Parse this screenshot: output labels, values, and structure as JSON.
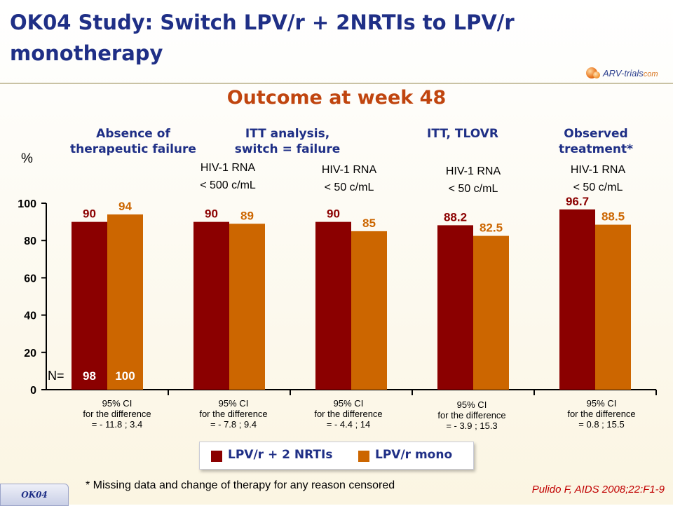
{
  "slide": {
    "title": "OK04 Study: Switch LPV/r + 2NRTIs to LPV/r monotherapy",
    "subtitle": "Outcome at week 48",
    "logo_text": "ARV-trials",
    "logo_domain": "com",
    "footnote": "* Missing data and change of therapy for any reason censored",
    "citation": "Pulido F, AIDS 2008;22:F1-9",
    "tag": "OK04"
  },
  "headers": [
    "Absence of\ntherapeutic failure",
    "ITT analysis,\nswitch = failure",
    "ITT, TLOVR",
    "Observed\ntreatment*"
  ],
  "rna_labels": [
    "HIV-1 RNA\n< 500 c/mL",
    "HIV-1 RNA\n< 50 c/mL",
    "HIV-1 RNA\n< 50 c/mL",
    "HIV-1 RNA\n< 50 c/mL"
  ],
  "ci_labels": [
    "95% CI\nfor the difference\n= - 11.8 ; 3.4",
    "95% CI\nfor the difference\n= - 7.8 ; 9.4",
    "95% CI\nfor the difference\n= - 4.4 ; 14",
    "95% CI\nfor the difference\n= - 3.9 ; 15.3",
    "95% CI\nfor the difference\n= 0.8 ; 15.5"
  ],
  "legend": [
    {
      "label": "LPV/r + 2 NRTIs",
      "color": "#8b0000"
    },
    {
      "label": "LPV/r mono",
      "color": "#cc6600"
    }
  ],
  "chart_data": {
    "type": "bar",
    "ylabel": "%",
    "ylim": [
      0,
      100
    ],
    "yticks": [
      0,
      20,
      40,
      60,
      80,
      100
    ],
    "n_label": "N=",
    "n_values": [
      "98",
      "100"
    ],
    "colors": {
      "dark": "#8b0000",
      "orange": "#cc6600",
      "dark_label": "#8b0000",
      "orange_label": "#cc6600"
    },
    "series": [
      {
        "name": "LPV/r + 2 NRTIs",
        "values": [
          90,
          90,
          90,
          88.2,
          96.7
        ],
        "labels": [
          "90",
          "90",
          "90",
          "88.2",
          "96.7"
        ]
      },
      {
        "name": "LPV/r mono",
        "values": [
          94,
          89,
          85,
          82.5,
          88.5
        ],
        "labels": [
          "94",
          "89",
          "85",
          "82.5",
          "88.5"
        ]
      }
    ]
  }
}
